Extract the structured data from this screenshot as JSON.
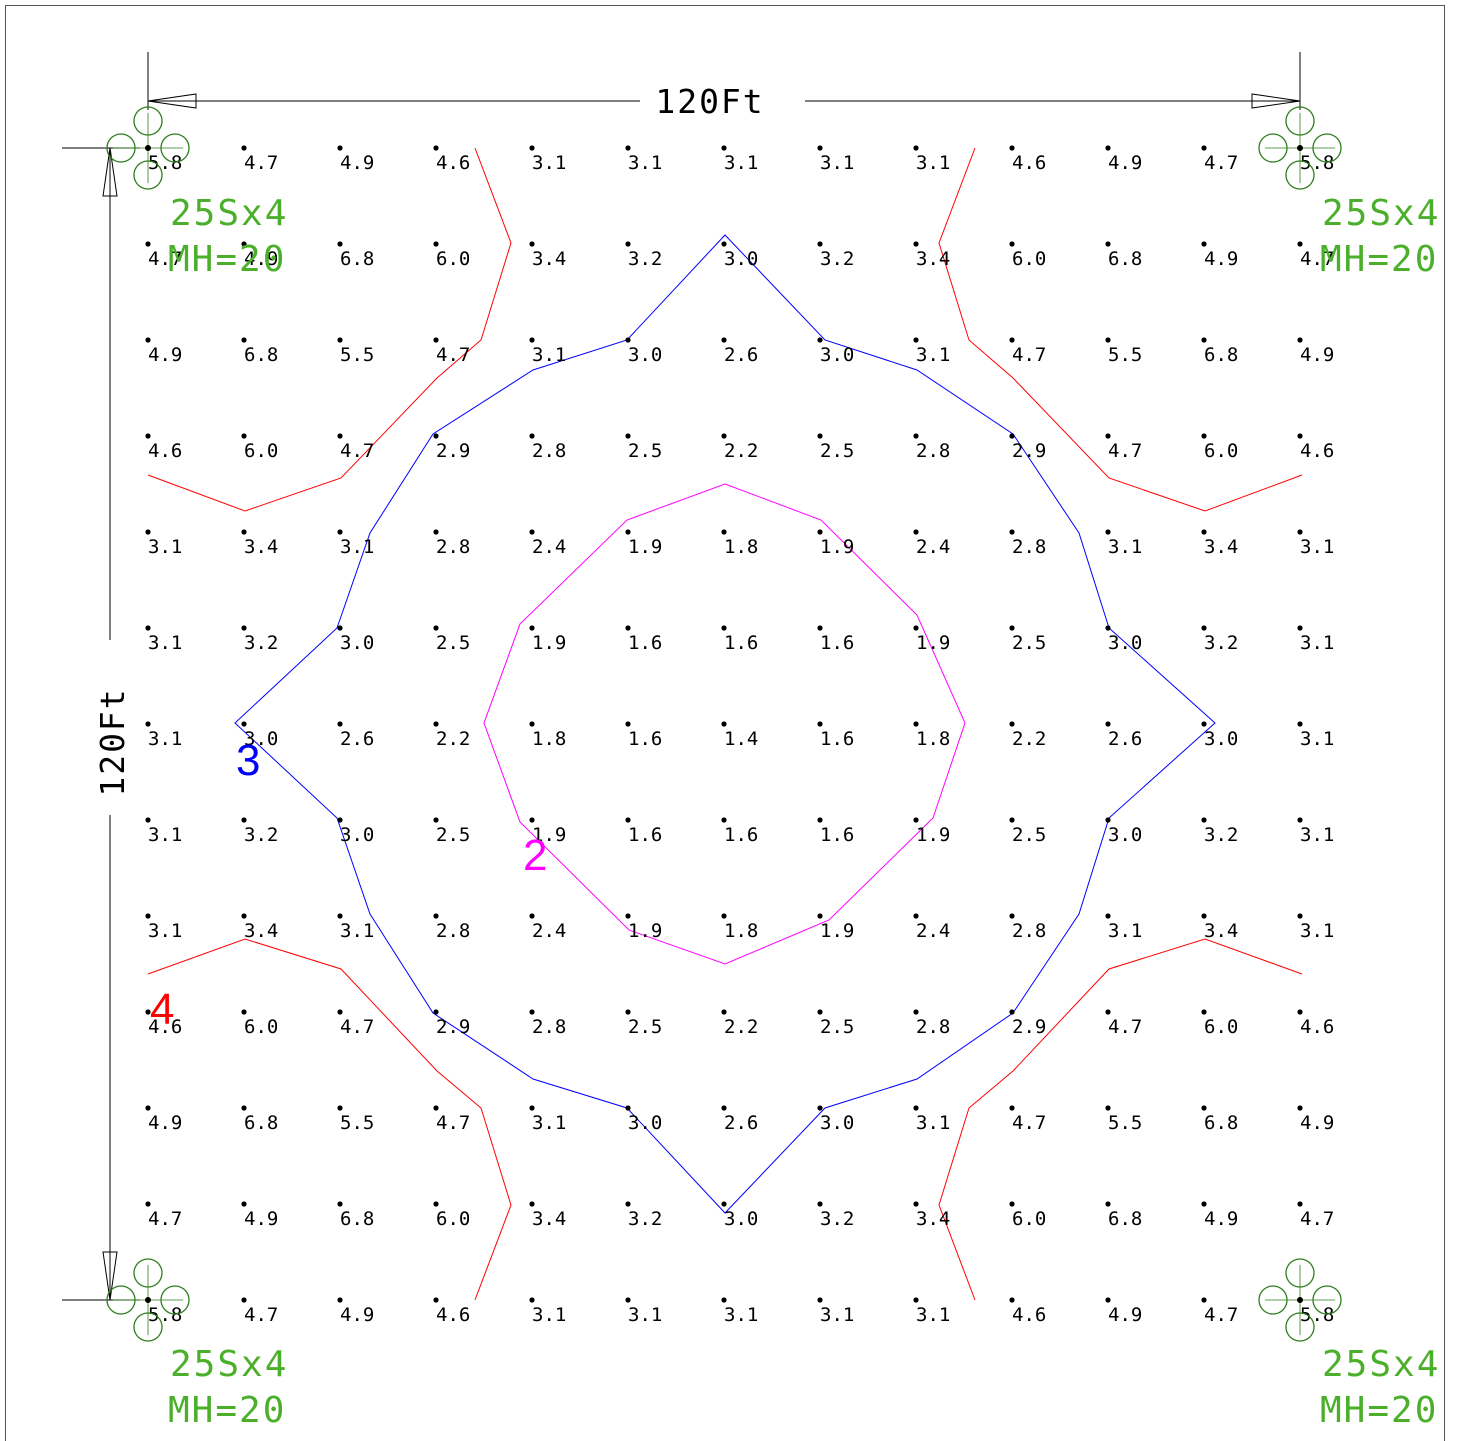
{
  "dimensions": {
    "width_label": "120Ft",
    "height_label": "120Ft"
  },
  "colors": {
    "fixture": "#4caf2b",
    "fixture_symbol": "#2e7d1e",
    "contour_4": "#ff0000",
    "contour_3": "#0000ff",
    "contour_2": "#ff00ff",
    "grid_text": "#000000",
    "border": "#555555"
  },
  "fixtures": [
    {
      "id": "top-left",
      "type_label": "25Sx4",
      "mounting_label": "MH=20"
    },
    {
      "id": "top-right",
      "type_label": "25Sx4",
      "mounting_label": "MH=20"
    },
    {
      "id": "bottom-left",
      "type_label": "25Sx4",
      "mounting_label": "MH=20"
    },
    {
      "id": "bottom-right",
      "type_label": "25Sx4",
      "mounting_label": "MH=20"
    }
  ],
  "contours": [
    {
      "level": "4",
      "color_key": "contour_4"
    },
    {
      "level": "3",
      "color_key": "contour_3"
    },
    {
      "level": "2",
      "color_key": "contour_2"
    }
  ],
  "grid_values": [
    [
      "5.8",
      "4.7",
      "4.9",
      "4.6",
      "3.1",
      "3.1",
      "3.1",
      "3.1",
      "3.1",
      "4.6",
      "4.9",
      "4.7",
      "5.8"
    ],
    [
      "4.7",
      "4.9",
      "6.8",
      "6.0",
      "3.4",
      "3.2",
      "3.0",
      "3.2",
      "3.4",
      "6.0",
      "6.8",
      "4.9",
      "4.7"
    ],
    [
      "4.9",
      "6.8",
      "5.5",
      "4.7",
      "3.1",
      "3.0",
      "2.6",
      "3.0",
      "3.1",
      "4.7",
      "5.5",
      "6.8",
      "4.9"
    ],
    [
      "4.6",
      "6.0",
      "4.7",
      "2.9",
      "2.8",
      "2.5",
      "2.2",
      "2.5",
      "2.8",
      "2.9",
      "4.7",
      "6.0",
      "4.6"
    ],
    [
      "3.1",
      "3.4",
      "3.1",
      "2.8",
      "2.4",
      "1.9",
      "1.8",
      "1.9",
      "2.4",
      "2.8",
      "3.1",
      "3.4",
      "3.1"
    ],
    [
      "3.1",
      "3.2",
      "3.0",
      "2.5",
      "1.9",
      "1.6",
      "1.6",
      "1.6",
      "1.9",
      "2.5",
      "3.0",
      "3.2",
      "3.1"
    ],
    [
      "3.1",
      "3.0",
      "2.6",
      "2.2",
      "1.8",
      "1.6",
      "1.4",
      "1.6",
      "1.8",
      "2.2",
      "2.6",
      "3.0",
      "3.1"
    ],
    [
      "3.1",
      "3.2",
      "3.0",
      "2.5",
      "1.9",
      "1.6",
      "1.6",
      "1.6",
      "1.9",
      "2.5",
      "3.0",
      "3.2",
      "3.1"
    ],
    [
      "3.1",
      "3.4",
      "3.1",
      "2.8",
      "2.4",
      "1.9",
      "1.8",
      "1.9",
      "2.4",
      "2.8",
      "3.1",
      "3.4",
      "3.1"
    ],
    [
      "4.6",
      "6.0",
      "4.7",
      "2.9",
      "2.8",
      "2.5",
      "2.2",
      "2.5",
      "2.8",
      "2.9",
      "4.7",
      "6.0",
      "4.6"
    ],
    [
      "4.9",
      "6.8",
      "5.5",
      "4.7",
      "3.1",
      "3.0",
      "2.6",
      "3.0",
      "3.1",
      "4.7",
      "5.5",
      "6.8",
      "4.9"
    ],
    [
      "4.7",
      "4.9",
      "6.8",
      "6.0",
      "3.4",
      "3.2",
      "3.0",
      "3.2",
      "3.4",
      "6.0",
      "6.8",
      "4.9",
      "4.7"
    ],
    [
      "5.8",
      "4.7",
      "4.9",
      "4.6",
      "3.1",
      "3.1",
      "3.1",
      "3.1",
      "3.1",
      "4.6",
      "4.9",
      "4.7",
      "5.8"
    ]
  ]
}
